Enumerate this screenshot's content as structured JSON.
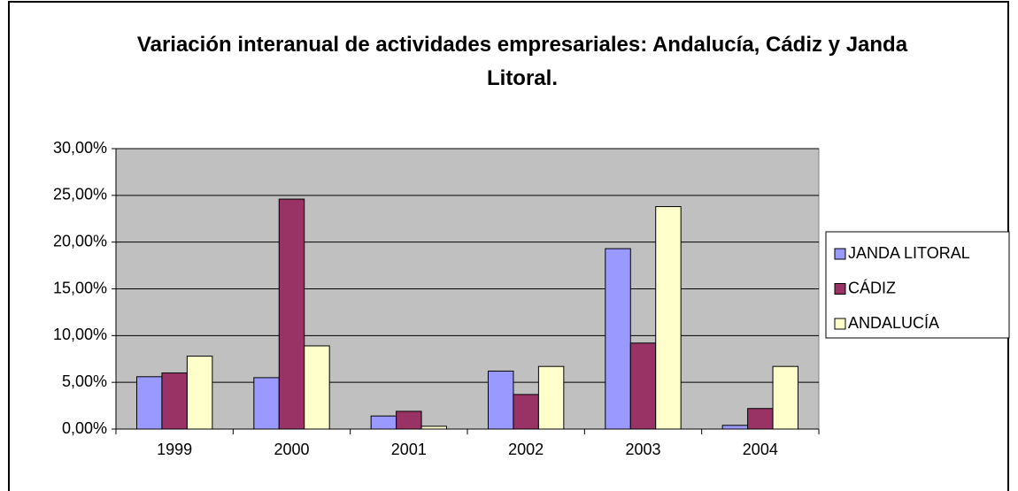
{
  "chart_data": {
    "type": "bar",
    "title": "Variación interanual de actividades empresariales: Andalucía, Cádiz y Janda Litoral.",
    "categories": [
      "1999",
      "2000",
      "2001",
      "2002",
      "2003",
      "2004"
    ],
    "series": [
      {
        "name": "JANDA LITORAL",
        "color": "#9999ff",
        "values": [
          5.6,
          5.5,
          1.4,
          6.2,
          19.3,
          0.4
        ]
      },
      {
        "name": "CÁDIZ",
        "color": "#993366",
        "values": [
          6.0,
          24.6,
          1.9,
          3.7,
          9.2,
          2.2
        ]
      },
      {
        "name": "ANDALUCÍA",
        "color": "#ffffcc",
        "values": [
          7.8,
          8.9,
          0.3,
          6.7,
          23.8,
          6.7
        ]
      }
    ],
    "ylim": [
      0,
      30
    ],
    "yticks": [
      {
        "value": 0,
        "label": "0,00%"
      },
      {
        "value": 5,
        "label": "5,00%"
      },
      {
        "value": 10,
        "label": "10,00%"
      },
      {
        "value": 15,
        "label": "15,00%"
      },
      {
        "value": 20,
        "label": "20,00%"
      },
      {
        "value": 25,
        "label": "25,00%"
      },
      {
        "value": 30,
        "label": "30,00%"
      }
    ],
    "grid": true,
    "legend": "right"
  }
}
